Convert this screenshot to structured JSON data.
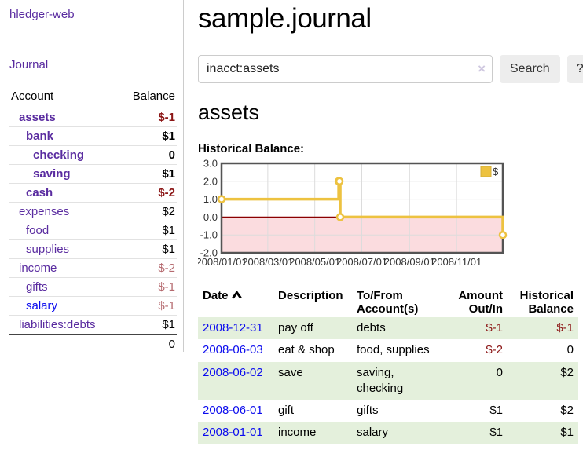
{
  "app": {
    "brand": "hledger-web",
    "nav_journal": "Journal"
  },
  "sidebar": {
    "headers": {
      "account": "Account",
      "balance": "Balance"
    },
    "accounts": [
      {
        "label": "assets",
        "level": 1,
        "bold": true,
        "balance": "$-1",
        "neg": true,
        "blue": false
      },
      {
        "label": "bank",
        "level": 2,
        "bold": true,
        "balance": "$1",
        "neg": false,
        "blue": false
      },
      {
        "label": "checking",
        "level": 3,
        "bold": true,
        "balance": "0",
        "neg": false,
        "blue": false
      },
      {
        "label": "saving",
        "level": 3,
        "bold": true,
        "balance": "$1",
        "neg": false,
        "blue": false
      },
      {
        "label": "cash",
        "level": 2,
        "bold": true,
        "balance": "$-2",
        "neg": true,
        "blue": false
      },
      {
        "label": "expenses",
        "level": 1,
        "bold": false,
        "balance": "$2",
        "neg": false,
        "blue": false
      },
      {
        "label": "food",
        "level": 2,
        "bold": false,
        "balance": "$1",
        "neg": false,
        "blue": false
      },
      {
        "label": "supplies",
        "level": 2,
        "bold": false,
        "balance": "$1",
        "neg": false,
        "blue": false
      },
      {
        "label": "income",
        "level": 1,
        "bold": false,
        "balance": "$-2",
        "neg": true,
        "blue": false
      },
      {
        "label": "gifts",
        "level": 2,
        "bold": false,
        "balance": "$-1",
        "neg": true,
        "blue": false
      },
      {
        "label": "salary",
        "level": 2,
        "bold": false,
        "balance": "$-1",
        "neg": true,
        "blue": true
      },
      {
        "label": "liabilities:debts",
        "level": 1,
        "bold": false,
        "balance": "$1",
        "neg": false,
        "blue": false
      }
    ],
    "total": "0"
  },
  "header": {
    "title": "sample.journal"
  },
  "search": {
    "value": "inacct:assets",
    "clear_icon": "×",
    "button_label": "Search",
    "help_label": "?"
  },
  "account_page": {
    "heading": "assets",
    "chart_label": "Historical Balance:"
  },
  "chart_data": {
    "type": "line",
    "step": true,
    "title": "Historical Balance",
    "series": [
      {
        "name": "$",
        "x": [
          "2008-01-01",
          "2008-06-01",
          "2008-06-02",
          "2008-06-03",
          "2008-12-31"
        ],
        "values": [
          1,
          2,
          2,
          0,
          -1
        ]
      }
    ],
    "xlim": [
      "2008-01-01",
      "2008-12-31"
    ],
    "ylim": [
      -2,
      3
    ],
    "yticks": [
      {
        "v": 3,
        "label": "3.0"
      },
      {
        "v": 2,
        "label": "2.0"
      },
      {
        "v": 1,
        "label": "1.0"
      },
      {
        "v": 0,
        "label": "0.0"
      },
      {
        "v": -1,
        "label": "-1.0"
      },
      {
        "v": -2,
        "label": "-2.0"
      }
    ],
    "xticks": [
      {
        "date": "2008-01-01",
        "label": "2008/01/01"
      },
      {
        "date": "2008-03-01",
        "label": "2008/03/01"
      },
      {
        "date": "2008-05-01",
        "label": "2008/05/01"
      },
      {
        "date": "2008-07-01",
        "label": "2008/07/01"
      },
      {
        "date": "2008-09-01",
        "label": "2008/09/01"
      },
      {
        "date": "2008-11-01",
        "label": "2008/11/01"
      }
    ],
    "legend": {
      "label": "$",
      "position": "top-right"
    },
    "grid": true,
    "negative_region_shaded": true
  },
  "register": {
    "columns": {
      "date": "Date",
      "description": "Description",
      "accounts": "To/From Account(s)",
      "amount": "Amount Out/In",
      "balance": "Historical Balance"
    },
    "sort": {
      "column": "date",
      "direction": "ascending"
    },
    "rows": [
      {
        "date": "2008-12-31",
        "description": "pay off",
        "accounts": "debts",
        "amount": "$-1",
        "amount_neg": true,
        "balance": "$-1",
        "balance_neg": true
      },
      {
        "date": "2008-06-03",
        "description": "eat & shop",
        "accounts": "food, supplies",
        "amount": "$-2",
        "amount_neg": true,
        "balance": "0",
        "balance_neg": false
      },
      {
        "date": "2008-06-02",
        "description": "save",
        "accounts": "saving, checking",
        "amount": "0",
        "amount_neg": false,
        "balance": "$2",
        "balance_neg": false
      },
      {
        "date": "2008-06-01",
        "description": "gift",
        "accounts": "gifts",
        "amount": "$1",
        "amount_neg": false,
        "balance": "$2",
        "balance_neg": false
      },
      {
        "date": "2008-01-01",
        "description": "income",
        "accounts": "salary",
        "amount": "$1",
        "amount_neg": false,
        "balance": "$1",
        "balance_neg": false
      }
    ]
  },
  "colors": {
    "link_purple": "#5a2ca0",
    "link_blue": "#0b0bee",
    "negative": "#8b1515",
    "negative_faded": "#b56a6f",
    "row_stripe_green": "#e4f0dc",
    "chart_gold": "#edc240",
    "chart_negative_region": "#fbdcdf",
    "chart_zero_line": "#8b0000",
    "chart_grid": "#dcdcdc",
    "chart_border": "#545454",
    "button_bg": "#ededed",
    "clear_icon": "#cfc8e0"
  }
}
